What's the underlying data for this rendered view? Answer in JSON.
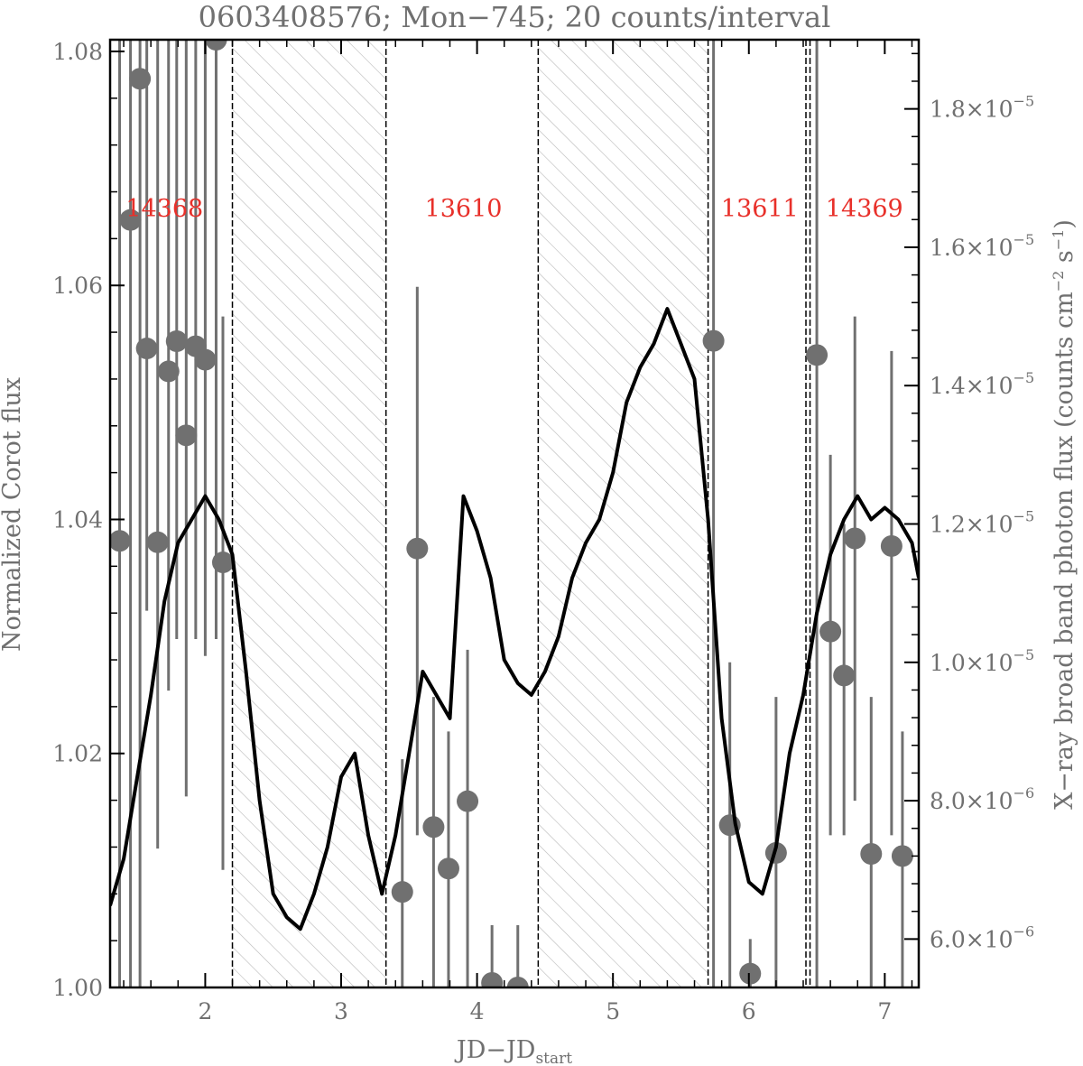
{
  "chart_data": {
    "type": "line",
    "title": "0603408576; Mon−745; 20 counts/interval",
    "xlabel_main": "JD−JD",
    "xlabel_sub": "start",
    "ylabel_left": "Normalized Corot flux",
    "ylabel_right_main": "X−ray broad band photon flux (counts cm",
    "ylabel_right_sup1": "−2",
    "ylabel_right_mid": " s",
    "ylabel_right_sup2": "−1",
    "ylabel_right_end": ")",
    "xlim": [
      1.3,
      7.25
    ],
    "ylim_left": [
      1.0,
      1.081
    ],
    "ylim_right": [
      5.3e-06,
      1.9e-05
    ],
    "x_ticks": [
      2,
      3,
      4,
      5,
      6,
      7
    ],
    "x_tick_labels": [
      "2",
      "3",
      "4",
      "5",
      "6",
      "7"
    ],
    "y_ticks_left": [
      1.0,
      1.02,
      1.04,
      1.06,
      1.08
    ],
    "y_tick_labels_left": [
      "1.00",
      "1.02",
      "1.04",
      "1.06",
      "1.08"
    ],
    "y_ticks_right": [
      6e-06,
      8e-06,
      1e-05,
      1.2e-05,
      1.4e-05,
      1.6e-05,
      1.8e-05
    ],
    "y_tick_labels_right": [
      {
        "mant": "6.0",
        "exp": "−6"
      },
      {
        "mant": "8.0",
        "exp": "−6"
      },
      {
        "mant": "1.0",
        "exp": "−5"
      },
      {
        "mant": "1.2",
        "exp": "−5"
      },
      {
        "mant": "1.4",
        "exp": "−5"
      },
      {
        "mant": "1.6",
        "exp": "−5"
      },
      {
        "mant": "1.8",
        "exp": "−5"
      }
    ],
    "times_symbol": "×10",
    "observation_labels": [
      {
        "text": "14368",
        "x": 1.7
      },
      {
        "text": "13610",
        "x": 3.9
      },
      {
        "text": "13611",
        "x": 6.08
      },
      {
        "text": "14369",
        "x": 6.85
      }
    ],
    "hatched_gaps": [
      [
        2.2,
        3.33
      ],
      [
        4.45,
        5.7
      ]
    ],
    "observation_windows": [
      [
        1.3,
        2.2
      ],
      [
        3.33,
        4.45
      ],
      [
        5.7,
        6.42
      ],
      [
        6.45,
        7.25
      ]
    ],
    "corot_lightcurve": {
      "name": "Normalized Corot flux",
      "color": "#000000",
      "x": [
        1.3,
        1.4,
        1.5,
        1.6,
        1.7,
        1.8,
        1.9,
        2.0,
        2.1,
        2.2,
        2.3,
        2.4,
        2.5,
        2.6,
        2.7,
        2.8,
        2.9,
        3.0,
        3.1,
        3.2,
        3.3,
        3.4,
        3.5,
        3.6,
        3.7,
        3.8,
        3.9,
        4.0,
        4.1,
        4.2,
        4.3,
        4.4,
        4.5,
        4.6,
        4.7,
        4.8,
        4.9,
        5.0,
        5.1,
        5.2,
        5.3,
        5.4,
        5.5,
        5.6,
        5.7,
        5.8,
        5.9,
        6.0,
        6.1,
        6.2,
        6.3,
        6.4,
        6.5,
        6.6,
        6.7,
        6.8,
        6.9,
        7.0,
        7.1,
        7.2,
        7.25
      ],
      "y": [
        1.007,
        1.011,
        1.018,
        1.025,
        1.033,
        1.038,
        1.04,
        1.042,
        1.04,
        1.037,
        1.027,
        1.016,
        1.008,
        1.006,
        1.005,
        1.008,
        1.012,
        1.018,
        1.02,
        1.013,
        1.008,
        1.013,
        1.02,
        1.027,
        1.025,
        1.023,
        1.042,
        1.039,
        1.035,
        1.028,
        1.026,
        1.025,
        1.027,
        1.03,
        1.035,
        1.038,
        1.04,
        1.044,
        1.05,
        1.053,
        1.055,
        1.058,
        1.055,
        1.052,
        1.04,
        1.023,
        1.014,
        1.009,
        1.008,
        1.012,
        1.02,
        1.025,
        1.032,
        1.037,
        1.04,
        1.042,
        1.04,
        1.041,
        1.04,
        1.038,
        1.035
      ]
    },
    "xray_points": {
      "name": "X−ray broad band photon flux",
      "color": "#707070",
      "points": [
        {
          "x": 1.37,
          "y": 1.1755e-05,
          "lo": 5.3e-06,
          "hi": 1.9e-05
        },
        {
          "x": 1.45,
          "y": 1.6395e-05,
          "lo": 5.3e-06,
          "hi": 1.9e-05
        },
        {
          "x": 1.52,
          "y": 1.8436e-05,
          "lo": 5.3e-06,
          "hi": 1.9e-05
        },
        {
          "x": 1.57,
          "y": 1.4537e-05,
          "lo": 1.0745e-05,
          "hi": 1.9e-05
        },
        {
          "x": 1.65,
          "y": 1.1736e-05,
          "lo": 7.308e-06,
          "hi": 1.9e-05
        },
        {
          "x": 1.73,
          "y": 1.4206e-05,
          "lo": 9.591e-06,
          "hi": 1.9e-05
        },
        {
          "x": 1.79,
          "y": 1.4642e-05,
          "lo": 1.0336e-05,
          "hi": 1.9e-05
        },
        {
          "x": 1.86,
          "y": 1.3281e-05,
          "lo": 8.062e-06,
          "hi": 1.9e-05
        },
        {
          "x": 1.93,
          "y": 1.4569e-05,
          "lo": 1.0336e-05,
          "hi": 1.9e-05
        },
        {
          "x": 2.0,
          "y": 1.4374e-05,
          "lo": 1.0091e-05,
          "hi": 1.9e-05
        },
        {
          "x": 2.08,
          "y": 1.9e-05,
          "lo": 1.0336e-05,
          "hi": 1.9e-05
        },
        {
          "x": 2.13,
          "y": 1.1445e-05,
          "lo": 7e-06,
          "hi": 1.5e-05
        },
        {
          "x": 3.45,
          "y": 6.681e-06,
          "lo": 5.3e-06,
          "hi": 8.6e-06
        },
        {
          "x": 3.56,
          "y": 1.1645e-05,
          "lo": 7.5e-06,
          "hi": 1.5428e-05
        },
        {
          "x": 3.68,
          "y": 7.619e-06,
          "lo": 5.3e-06,
          "hi": 9.5e-06
        },
        {
          "x": 3.79,
          "y": 7.019e-06,
          "lo": 5.3e-06,
          "hi": 9e-06
        },
        {
          "x": 3.93,
          "y": 7.992e-06,
          "lo": 5.3e-06,
          "hi": 1.0181e-05
        },
        {
          "x": 4.11,
          "y": 5.365e-06,
          "lo": 5.3e-06,
          "hi": 6.2e-06
        },
        {
          "x": 4.3,
          "y": 5.3e-06,
          "lo": 5.3e-06,
          "hi": 6.2e-06
        },
        {
          "x": 5.74,
          "y": 1.4647e-05,
          "lo": 5.3e-06,
          "hi": 1.9e-05
        },
        {
          "x": 5.86,
          "y": 7.646e-06,
          "lo": 5.3e-06,
          "hi": 1e-05
        },
        {
          "x": 6.01,
          "y": 5.5e-06,
          "lo": 5.3e-06,
          "hi": 6e-06
        },
        {
          "x": 6.2,
          "y": 7.245e-06,
          "lo": 5.3e-06,
          "hi": 9.5e-06
        },
        {
          "x": 6.5,
          "y": 1.4442e-05,
          "lo": 5.3e-06,
          "hi": 1.9e-05
        },
        {
          "x": 6.6,
          "y": 1.0445e-05,
          "lo": 7.5e-06,
          "hi": 1.3e-05
        },
        {
          "x": 6.7,
          "y": 9.809e-06,
          "lo": 7.5e-06,
          "hi": 1.2e-05
        },
        {
          "x": 6.78,
          "y": 1.1791e-05,
          "lo": 8e-06,
          "hi": 1.5e-05
        },
        {
          "x": 6.9,
          "y": 7.231e-06,
          "lo": 5.3e-06,
          "hi": 9.5e-06
        },
        {
          "x": 7.05,
          "y": 1.1681e-05,
          "lo": 7.5e-06,
          "hi": 1.45e-05
        },
        {
          "x": 7.13,
          "y": 7.2e-06,
          "lo": 5.3e-06,
          "hi": 9e-06
        }
      ]
    }
  }
}
